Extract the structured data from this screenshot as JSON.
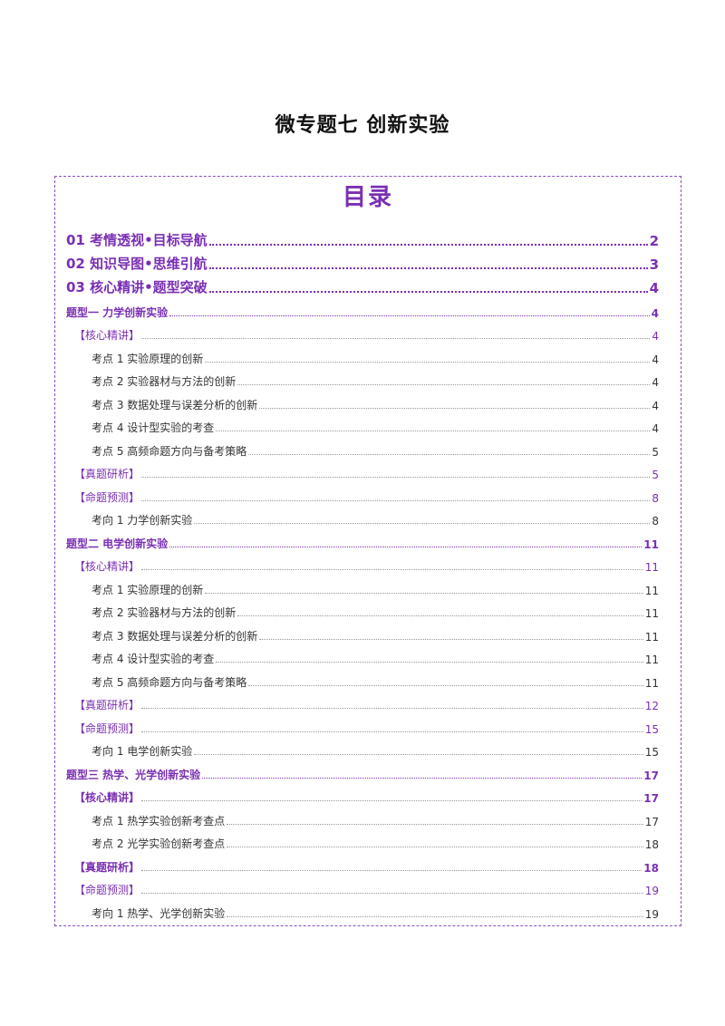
{
  "document": {
    "title": "微专题七  创新实验"
  },
  "toc": {
    "heading": "目录",
    "entries": [
      {
        "label": "01 考情透视•目标导航",
        "page": "2",
        "level": 0
      },
      {
        "label": "02 知识导图•思维引航",
        "page": "3",
        "level": 0
      },
      {
        "label": "03 核心精讲•题型突破",
        "page": "4",
        "level": 0
      },
      {
        "label": "题型一    力学创新实验",
        "page": "4",
        "level": 1
      },
      {
        "label": "【核心精讲】",
        "page": "4",
        "level": 2
      },
      {
        "label": "考点 1  实验原理的创新",
        "page": "4",
        "level": 3
      },
      {
        "label": "考点 2 实验器材与方法的创新",
        "page": "4",
        "level": 3
      },
      {
        "label": "考点 3 数据处理与误差分析的创新",
        "page": "4",
        "level": 3
      },
      {
        "label": "考点 4 设计型实验的考查",
        "page": "4",
        "level": 3
      },
      {
        "label": "考点 5  高频命题方向与备考策略",
        "page": "5",
        "level": 3
      },
      {
        "label": "【真题研析】",
        "page": "5",
        "level": 2
      },
      {
        "label": "【命题预测】",
        "page": "8",
        "level": 2
      },
      {
        "label": "考向 1  力学创新实验",
        "page": "8",
        "level": 3
      },
      {
        "label": "题型二    电学创新实验",
        "page": "11",
        "level": 1
      },
      {
        "label": "【核心精讲】",
        "page": "11",
        "level": 2
      },
      {
        "label": "考点 1  实验原理的创新",
        "page": "11",
        "level": 3
      },
      {
        "label": "考点 2 实验器材与方法的创新",
        "page": "11",
        "level": 3
      },
      {
        "label": "考点 3 数据处理与误差分析的创新",
        "page": "11",
        "level": 3
      },
      {
        "label": "考点 4 设计型实验的考查",
        "page": "11",
        "level": 3
      },
      {
        "label": "考点 5  高频命题方向与备考策略",
        "page": "11",
        "level": 3
      },
      {
        "label": "【真题研析】",
        "page": "12",
        "level": 2
      },
      {
        "label": "【命题预测】",
        "page": "15",
        "level": 2
      },
      {
        "label": "考向 1  电学创新实验",
        "page": "15",
        "level": 3
      },
      {
        "label": "题型三    热学、光学创新实验",
        "page": "17",
        "level": 1
      },
      {
        "label": "【核心精讲】",
        "page": "17",
        "level": 2,
        "strong": true
      },
      {
        "label": "考点 1 热学实验创新考查点",
        "page": "17",
        "level": 3
      },
      {
        "label": "考点 2 光学实验创新考查点",
        "page": "18",
        "level": 3
      },
      {
        "label": "【真题研析】",
        "page": "18",
        "level": 2,
        "strong": true
      },
      {
        "label": "【命题预测】",
        "page": "19",
        "level": 2
      },
      {
        "label": "考向 1  热学、光学创新实验",
        "page": "19",
        "level": 3
      }
    ]
  }
}
